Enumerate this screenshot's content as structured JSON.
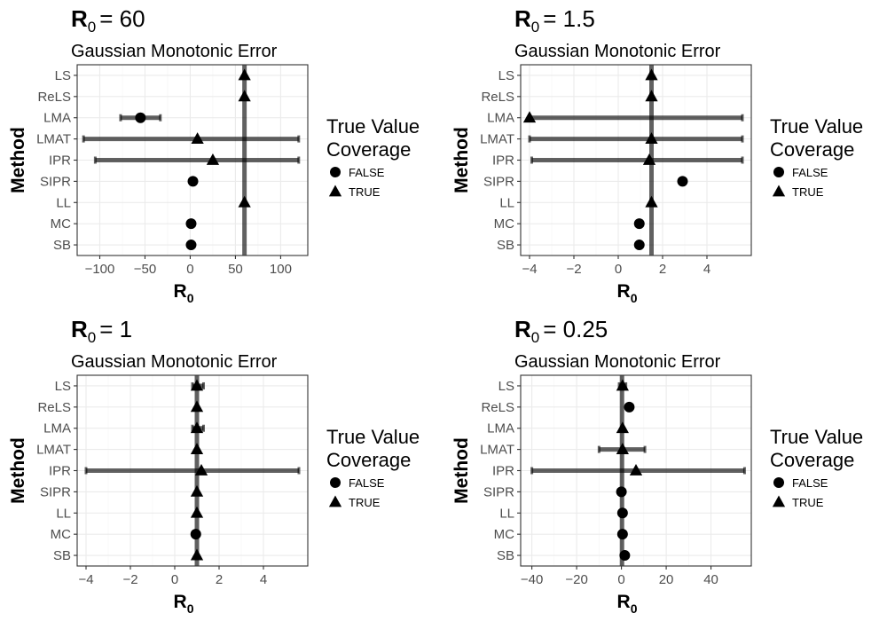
{
  "chart_data": [
    {
      "type": "scatter",
      "title_main": "R",
      "title_sub0": "0",
      "title_value": "= 60",
      "subtitle": "Gaussian Monotonic Error",
      "xlabel": "R",
      "xlabel_sub": "0",
      "ylabel": "Method",
      "xlim": [
        -125,
        130
      ],
      "xticks": [
        -100,
        -50,
        0,
        50,
        100
      ],
      "true_value": 60,
      "grid": true,
      "categories": [
        "LS",
        "ReLS",
        "LMA",
        "LMAT",
        "IPR",
        "SIPR",
        "LL",
        "MC",
        "SB"
      ],
      "points": [
        {
          "method": "LS",
          "x": 60,
          "coverage": "TRUE"
        },
        {
          "method": "ReLS",
          "x": 60,
          "coverage": "TRUE"
        },
        {
          "method": "LMA",
          "x": -55,
          "lo": -77,
          "hi": -33,
          "coverage": "FALSE"
        },
        {
          "method": "LMAT",
          "x": 8,
          "lo": -118,
          "hi": 120,
          "coverage": "TRUE"
        },
        {
          "method": "IPR",
          "x": 25,
          "lo": -105,
          "hi": 120,
          "coverage": "TRUE"
        },
        {
          "method": "SIPR",
          "x": 3,
          "coverage": "FALSE"
        },
        {
          "method": "LL",
          "x": 60,
          "coverage": "TRUE"
        },
        {
          "method": "MC",
          "x": 1,
          "coverage": "FALSE"
        },
        {
          "method": "SB",
          "x": 1,
          "coverage": "FALSE"
        }
      ]
    },
    {
      "type": "scatter",
      "title_main": "R",
      "title_sub0": "0",
      "title_value": "= 1.5",
      "subtitle": "Gaussian Monotonic Error",
      "xlabel": "R",
      "xlabel_sub": "0",
      "ylabel": "Method",
      "xlim": [
        -4.4,
        6.0
      ],
      "xticks": [
        -4,
        -2,
        0,
        2,
        4
      ],
      "true_value": 1.5,
      "grid": true,
      "categories": [
        "LS",
        "ReLS",
        "LMA",
        "LMAT",
        "IPR",
        "SIPR",
        "LL",
        "MC",
        "SB"
      ],
      "points": [
        {
          "method": "LS",
          "x": 1.5,
          "coverage": "TRUE"
        },
        {
          "method": "ReLS",
          "x": 1.5,
          "coverage": "TRUE"
        },
        {
          "method": "LMA",
          "x": -4.0,
          "lo": -4.0,
          "hi": 5.6,
          "coverage": "TRUE"
        },
        {
          "method": "LMAT",
          "x": 1.5,
          "lo": -4.0,
          "hi": 5.6,
          "coverage": "TRUE"
        },
        {
          "method": "IPR",
          "x": 1.4,
          "lo": -3.9,
          "hi": 5.6,
          "coverage": "TRUE"
        },
        {
          "method": "SIPR",
          "x": 2.9,
          "coverage": "FALSE"
        },
        {
          "method": "LL",
          "x": 1.5,
          "coverage": "TRUE"
        },
        {
          "method": "MC",
          "x": 0.95,
          "coverage": "FALSE"
        },
        {
          "method": "SB",
          "x": 0.95,
          "coverage": "FALSE"
        }
      ]
    },
    {
      "type": "scatter",
      "title_main": "R",
      "title_sub0": "0",
      "title_value": "= 1",
      "subtitle": "Gaussian Monotonic Error",
      "xlabel": "R",
      "xlabel_sub": "0",
      "ylabel": "Method",
      "xlim": [
        -4.4,
        6.0
      ],
      "xticks": [
        -4,
        -2,
        0,
        2,
        4
      ],
      "true_value": 1,
      "grid": true,
      "categories": [
        "LS",
        "ReLS",
        "LMA",
        "LMAT",
        "IPR",
        "SIPR",
        "LL",
        "MC",
        "SB"
      ],
      "points": [
        {
          "method": "LS",
          "x": 1.0,
          "lo": 0.8,
          "hi": 1.3,
          "coverage": "TRUE"
        },
        {
          "method": "ReLS",
          "x": 1.0,
          "coverage": "TRUE"
        },
        {
          "method": "LMA",
          "x": 1.0,
          "lo": 0.8,
          "hi": 1.3,
          "coverage": "TRUE"
        },
        {
          "method": "LMAT",
          "x": 1.0,
          "coverage": "TRUE"
        },
        {
          "method": "IPR",
          "x": 1.2,
          "lo": -4.0,
          "hi": 5.6,
          "coverage": "TRUE"
        },
        {
          "method": "SIPR",
          "x": 1.0,
          "coverage": "TRUE"
        },
        {
          "method": "LL",
          "x": 1.0,
          "coverage": "TRUE"
        },
        {
          "method": "MC",
          "x": 0.95,
          "coverage": "FALSE"
        },
        {
          "method": "SB",
          "x": 1.0,
          "coverage": "TRUE"
        }
      ]
    },
    {
      "type": "scatter",
      "title_main": "R",
      "title_sub0": "0",
      "title_value": "= 0.25",
      "subtitle": "Gaussian Monotonic Error",
      "xlabel": "R",
      "xlabel_sub": "0",
      "ylabel": "Method",
      "xlim": [
        -45,
        58
      ],
      "xticks": [
        -40,
        -20,
        0,
        20,
        40
      ],
      "true_value": 0.25,
      "grid": true,
      "categories": [
        "LS",
        "ReLS",
        "LMA",
        "LMAT",
        "IPR",
        "SIPR",
        "LL",
        "MC",
        "SB"
      ],
      "points": [
        {
          "method": "LS",
          "x": 0.5,
          "lo": -1,
          "hi": 2,
          "coverage": "TRUE"
        },
        {
          "method": "ReLS",
          "x": 3.5,
          "coverage": "FALSE"
        },
        {
          "method": "LMA",
          "x": 0.5,
          "coverage": "TRUE"
        },
        {
          "method": "LMAT",
          "x": 0.5,
          "lo": -10,
          "hi": 10.5,
          "coverage": "TRUE"
        },
        {
          "method": "IPR",
          "x": 6.5,
          "lo": -40,
          "hi": 55,
          "coverage": "TRUE"
        },
        {
          "method": "SIPR",
          "x": 0,
          "coverage": "FALSE"
        },
        {
          "method": "LL",
          "x": 0.5,
          "coverage": "FALSE"
        },
        {
          "method": "MC",
          "x": 0.5,
          "coverage": "FALSE"
        },
        {
          "method": "SB",
          "x": 1.5,
          "coverage": "FALSE"
        }
      ]
    }
  ],
  "legend": {
    "title_line1": "True Value",
    "title_line2": "Coverage",
    "items": [
      {
        "label": "FALSE",
        "shape": "circle"
      },
      {
        "label": "TRUE",
        "shape": "triangle"
      }
    ]
  }
}
